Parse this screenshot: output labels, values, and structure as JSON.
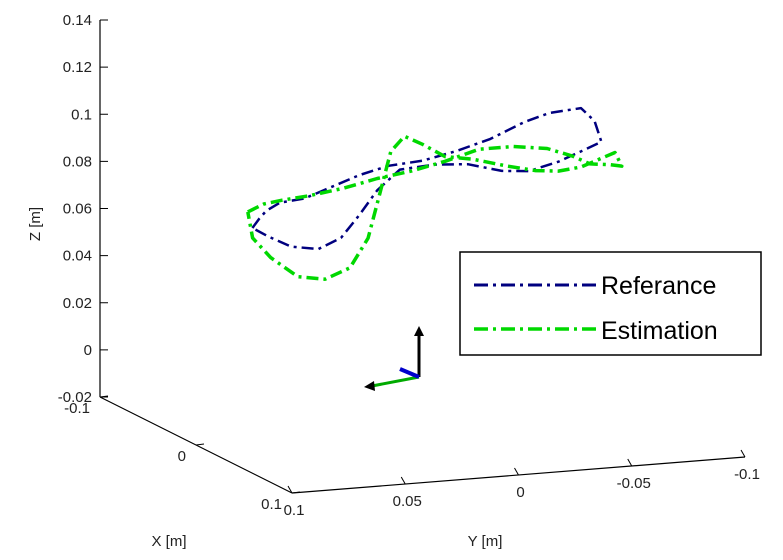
{
  "chart_data": {
    "type": "line3d",
    "title": "",
    "xlabel": "X [m]",
    "ylabel": "Y [m]",
    "zlabel": "Z [m]",
    "xlim": [
      -0.1,
      0.1
    ],
    "ylim": [
      -0.1,
      0.1
    ],
    "zlim": [
      -0.02,
      0.14
    ],
    "x_ticks": [
      "0.1",
      "0",
      "-0.1"
    ],
    "y_ticks": [
      "0.1",
      "0.05",
      "0",
      "-0.05",
      "-0.1"
    ],
    "z_ticks": [
      "0.14",
      "0.12",
      "0.1",
      "0.08",
      "0.06",
      "0.04",
      "0.02",
      "0",
      "-0.02"
    ],
    "grid": false,
    "legend_position": "right",
    "series": [
      {
        "name": "Referance",
        "color": "#00007f",
        "line_style": "dash-dot",
        "points": [
          {
            "x": -0.005,
            "y": 0.073,
            "z": 0.069
          },
          {
            "x": 0.0,
            "y": 0.072,
            "z": 0.074
          },
          {
            "x": 0.0,
            "y": 0.069,
            "z": 0.077
          },
          {
            "x": 0.0,
            "y": 0.063,
            "z": 0.08
          },
          {
            "x": 0.0,
            "y": 0.052,
            "z": 0.081
          },
          {
            "x": 0.0,
            "y": 0.04,
            "z": 0.085
          },
          {
            "x": 0.0,
            "y": 0.028,
            "z": 0.089
          },
          {
            "x": 0.0,
            "y": 0.015,
            "z": 0.092
          },
          {
            "x": 0.0,
            "y": 0.0,
            "z": 0.093
          },
          {
            "x": 0.0,
            "y": -0.015,
            "z": 0.096
          },
          {
            "x": 0.0,
            "y": -0.03,
            "z": 0.1
          },
          {
            "x": 0.0,
            "y": -0.045,
            "z": 0.106
          },
          {
            "x": 0.0,
            "y": -0.056,
            "z": 0.109
          },
          {
            "x": 0.0,
            "y": -0.07,
            "z": 0.11
          },
          {
            "x": 0.0,
            "y": -0.076,
            "z": 0.104
          },
          {
            "x": 0.0,
            "y": -0.079,
            "z": 0.095
          },
          {
            "x": 0.0,
            "y": -0.071,
            "z": 0.092
          },
          {
            "x": 0.0,
            "y": -0.06,
            "z": 0.088
          },
          {
            "x": 0.0,
            "y": -0.047,
            "z": 0.085
          },
          {
            "x": 0.0,
            "y": -0.035,
            "z": 0.086
          },
          {
            "x": 0.0,
            "y": -0.02,
            "z": 0.09
          },
          {
            "x": 0.0,
            "y": -0.005,
            "z": 0.091
          },
          {
            "x": 0.0,
            "y": 0.01,
            "z": 0.09
          },
          {
            "x": 0.0,
            "y": 0.02,
            "z": 0.082
          },
          {
            "x": 0.0,
            "y": 0.028,
            "z": 0.072
          },
          {
            "x": 0.0,
            "y": 0.036,
            "z": 0.063
          },
          {
            "x": 0.0,
            "y": 0.046,
            "z": 0.059
          },
          {
            "x": 0.0,
            "y": 0.058,
            "z": 0.061
          },
          {
            "x": 0.0,
            "y": 0.068,
            "z": 0.066
          },
          {
            "x": -0.005,
            "y": 0.073,
            "z": 0.069
          }
        ]
      },
      {
        "name": "Estimation",
        "color": "#00d800",
        "line_style": "dash-dot",
        "points": [
          {
            "x": -0.005,
            "y": 0.075,
            "z": 0.076
          },
          {
            "x": 0.0,
            "y": 0.07,
            "z": 0.08
          },
          {
            "x": 0.0,
            "y": 0.062,
            "z": 0.081
          },
          {
            "x": 0.0,
            "y": 0.05,
            "z": 0.082
          },
          {
            "x": 0.0,
            "y": 0.035,
            "z": 0.084
          },
          {
            "x": 0.0,
            "y": 0.02,
            "z": 0.087
          },
          {
            "x": 0.0,
            "y": 0.005,
            "z": 0.089
          },
          {
            "x": 0.0,
            "y": -0.01,
            "z": 0.092
          },
          {
            "x": 0.0,
            "y": -0.025,
            "z": 0.096
          },
          {
            "x": 0.0,
            "y": -0.04,
            "z": 0.096
          },
          {
            "x": 0.0,
            "y": -0.055,
            "z": 0.094
          },
          {
            "x": 0.0,
            "y": -0.066,
            "z": 0.09
          },
          {
            "x": 0.0,
            "y": -0.074,
            "z": 0.086
          },
          {
            "x": 0.0,
            "y": -0.083,
            "z": 0.085
          },
          {
            "x": 0.0,
            "y": -0.088,
            "z": 0.084
          },
          {
            "x": 0.0,
            "y": -0.085,
            "z": 0.09
          },
          {
            "x": 0.0,
            "y": -0.079,
            "z": 0.088
          },
          {
            "x": 0.0,
            "y": -0.07,
            "z": 0.085
          },
          {
            "x": 0.0,
            "y": -0.06,
            "z": 0.084
          },
          {
            "x": 0.0,
            "y": -0.05,
            "z": 0.085
          },
          {
            "x": 0.0,
            "y": -0.037,
            "z": 0.088
          },
          {
            "x": 0.0,
            "y": -0.022,
            "z": 0.092
          },
          {
            "x": 0.0,
            "y": -0.01,
            "z": 0.094
          },
          {
            "x": 0.0,
            "y": 0.0,
            "z": 0.1
          },
          {
            "x": 0.0,
            "y": 0.008,
            "z": 0.104
          },
          {
            "x": 0.0,
            "y": 0.014,
            "z": 0.098
          },
          {
            "x": 0.0,
            "y": 0.019,
            "z": 0.08
          },
          {
            "x": 0.0,
            "y": 0.024,
            "z": 0.062
          },
          {
            "x": 0.0,
            "y": 0.032,
            "z": 0.05
          },
          {
            "x": 0.0,
            "y": 0.043,
            "z": 0.046
          },
          {
            "x": 0.0,
            "y": 0.055,
            "z": 0.048
          },
          {
            "x": 0.0,
            "y": 0.067,
            "z": 0.057
          },
          {
            "x": 0.0,
            "y": 0.075,
            "z": 0.066
          },
          {
            "x": -0.005,
            "y": 0.075,
            "z": 0.076
          }
        ]
      }
    ],
    "frame_axes_colors": {
      "x": "#00aa00",
      "y": "#0000cc",
      "z": "#000000"
    }
  }
}
